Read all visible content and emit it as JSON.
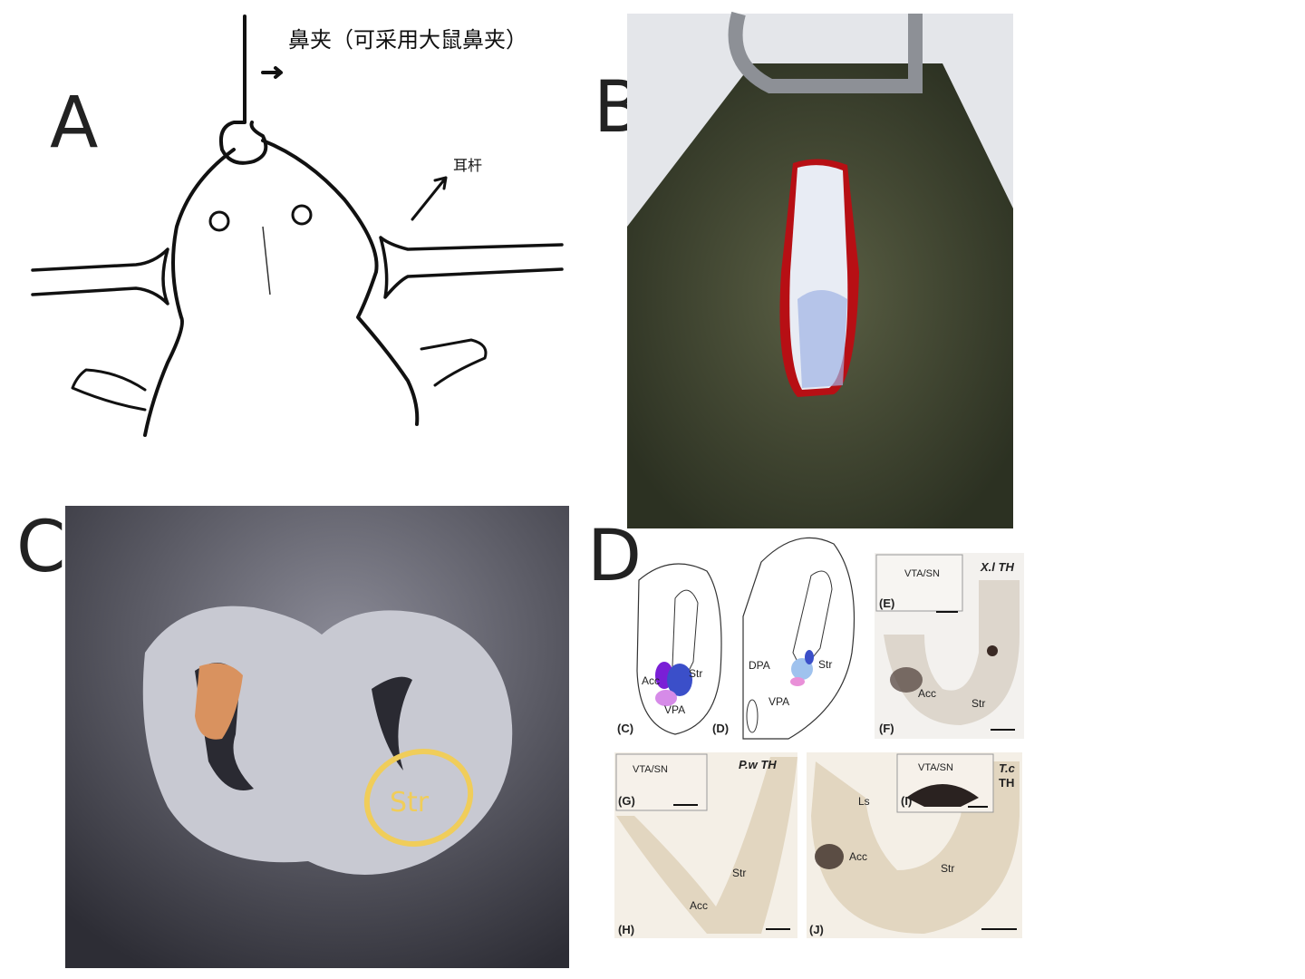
{
  "panel_a": {
    "label": "A",
    "nose_clamp": "鼻夹（可采用大鼠鼻夹）",
    "ear_bar": "耳杆"
  },
  "panel_b": {
    "label": "B"
  },
  "panel_c": {
    "label": "C",
    "region": "Str"
  },
  "panel_d": {
    "label": "D",
    "sub_c": {
      "tag": "(C)",
      "labels": [
        "Acc",
        "Str",
        "VPA"
      ]
    },
    "sub_d": {
      "tag": "(D)",
      "labels": [
        "DPA",
        "Str",
        "VPA"
      ]
    },
    "sub_e": {
      "tag": "(E)",
      "labels": [
        "VTA/SN"
      ]
    },
    "sub_f": {
      "tag": "(F)",
      "title": "X.l TH",
      "labels": [
        "Acc",
        "Str"
      ]
    },
    "sub_g": {
      "tag": "(G)",
      "labels": [
        "VTA/SN"
      ]
    },
    "sub_h": {
      "tag": "(H)",
      "title": "P.w TH",
      "labels": [
        "Str",
        "Acc"
      ]
    },
    "sub_i": {
      "tag": "(I)",
      "labels": [
        "VTA/SN"
      ]
    },
    "sub_j": {
      "tag": "(J)",
      "title_species": "T.c",
      "title_stain": "TH",
      "labels": [
        "Ls",
        "Acc",
        "Str"
      ]
    }
  }
}
